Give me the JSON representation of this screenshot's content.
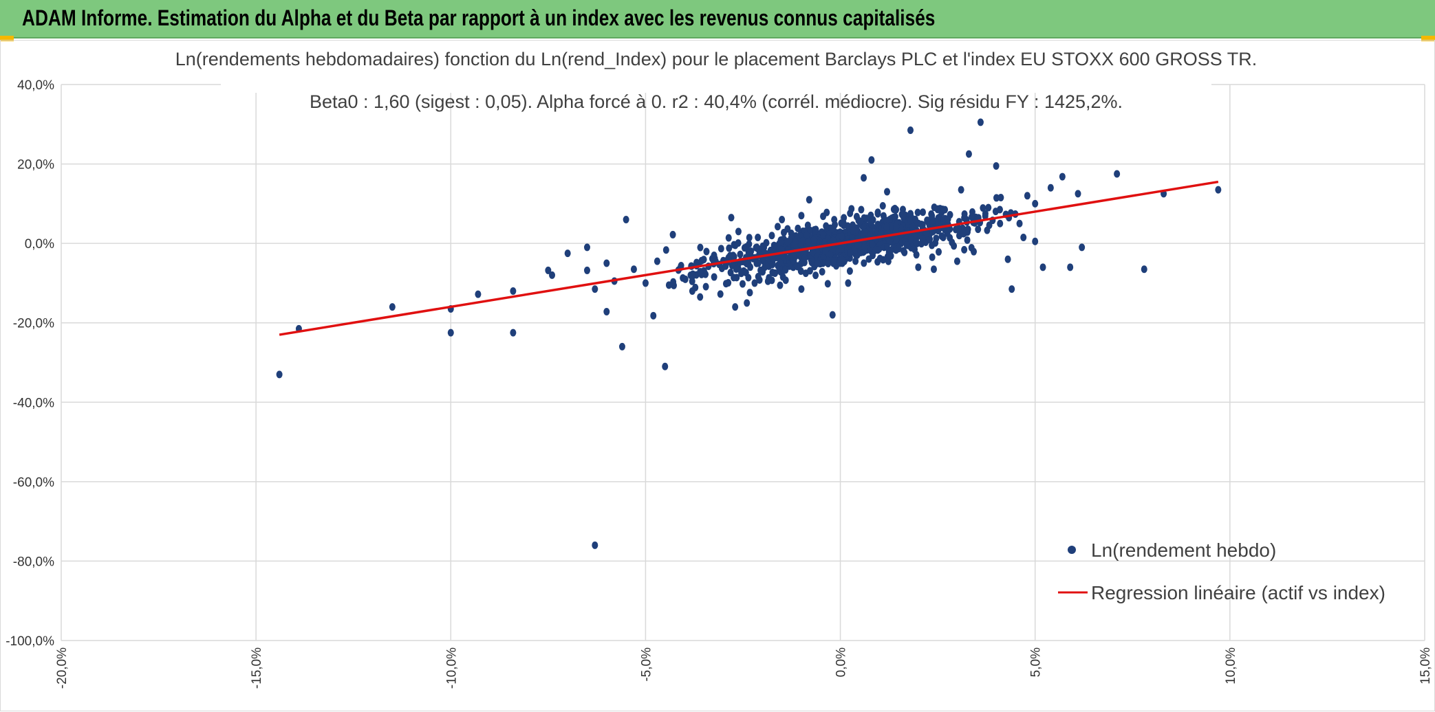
{
  "header": {
    "title": "ADAM Informe. Estimation du Alpha et du Beta par rapport à un index avec les revenus connus capitalisés"
  },
  "colors": {
    "header_bg": "#7ec87e",
    "points": "#1f3f7a",
    "regression": "#e01010",
    "grid": "#d9d9d9"
  },
  "chart_data": {
    "type": "scatter",
    "title": "Ln(rendements hebdomadaires) fonction du Ln(rend_Index) pour le placement Barclays PLC et l'index EU STOXX 600 GROSS TR.",
    "subtitle": "Beta0 : 1,60 (sigest : 0,05). Alpha forcé à 0. r2 : 40,4% (corrél. médiocre). Sig résidu FY : 1425,2%.",
    "xlim": [
      -0.2,
      0.15
    ],
    "ylim": [
      -1.0,
      0.4
    ],
    "x_ticks": [
      -0.2,
      -0.15,
      -0.1,
      -0.05,
      0.0,
      0.05,
      0.1,
      0.15
    ],
    "x_tick_labels": [
      "-20,0%",
      "-15,0%",
      "-10,0%",
      "-5,0%",
      "0,0%",
      "5,0%",
      "10,0%",
      "15,0%"
    ],
    "y_ticks": [
      0.4,
      0.2,
      0.0,
      -0.2,
      -0.4,
      -0.6,
      -0.8,
      -1.0
    ],
    "y_tick_labels": [
      "40,0%",
      "20,0%",
      "0,0%",
      "-20,0%",
      "-40,0%",
      "-60,0%",
      "-80,0%",
      "-100,0%"
    ],
    "grid": true,
    "legend_position": "bottom-right",
    "series": [
      {
        "name": "Ln(rendement hebdo)",
        "kind": "scatter",
        "outliers": [
          {
            "x": -0.144,
            "y": -0.33
          },
          {
            "x": -0.139,
            "y": -0.215
          },
          {
            "x": -0.115,
            "y": -0.16
          },
          {
            "x": -0.1,
            "y": -0.165
          },
          {
            "x": -0.1,
            "y": -0.225
          },
          {
            "x": -0.093,
            "y": -0.128
          },
          {
            "x": -0.084,
            "y": -0.12
          },
          {
            "x": -0.084,
            "y": -0.225
          },
          {
            "x": -0.075,
            "y": -0.068
          },
          {
            "x": -0.074,
            "y": -0.08
          },
          {
            "x": -0.07,
            "y": -0.025
          },
          {
            "x": -0.065,
            "y": -0.01
          },
          {
            "x": -0.065,
            "y": -0.068
          },
          {
            "x": -0.063,
            "y": -0.76
          },
          {
            "x": -0.063,
            "y": -0.115
          },
          {
            "x": -0.06,
            "y": -0.05
          },
          {
            "x": -0.06,
            "y": -0.172
          },
          {
            "x": -0.058,
            "y": -0.095
          },
          {
            "x": -0.056,
            "y": -0.26
          },
          {
            "x": -0.055,
            "y": 0.06
          },
          {
            "x": -0.053,
            "y": -0.065
          },
          {
            "x": -0.05,
            "y": -0.1
          },
          {
            "x": -0.048,
            "y": -0.182
          },
          {
            "x": -0.047,
            "y": -0.045
          },
          {
            "x": -0.045,
            "y": -0.31
          },
          {
            "x": -0.044,
            "y": -0.105
          },
          {
            "x": -0.043,
            "y": 0.022
          },
          {
            "x": -0.041,
            "y": -0.06
          },
          {
            "x": -0.038,
            "y": -0.12
          },
          {
            "x": -0.036,
            "y": -0.135
          },
          {
            "x": -0.028,
            "y": 0.065
          },
          {
            "x": -0.027,
            "y": -0.16
          },
          {
            "x": -0.024,
            "y": -0.15
          },
          {
            "x": -0.022,
            "y": -0.1
          },
          {
            "x": -0.015,
            "y": 0.06
          },
          {
            "x": -0.01,
            "y": -0.115
          },
          {
            "x": -0.01,
            "y": 0.07
          },
          {
            "x": -0.008,
            "y": 0.11
          },
          {
            "x": -0.002,
            "y": -0.18
          },
          {
            "x": 0.002,
            "y": -0.1
          },
          {
            "x": 0.006,
            "y": 0.165
          },
          {
            "x": 0.008,
            "y": 0.21
          },
          {
            "x": 0.012,
            "y": 0.13
          },
          {
            "x": 0.018,
            "y": 0.285
          },
          {
            "x": 0.02,
            "y": -0.06
          },
          {
            "x": 0.024,
            "y": -0.065
          },
          {
            "x": 0.03,
            "y": -0.045
          },
          {
            "x": 0.031,
            "y": 0.135
          },
          {
            "x": 0.033,
            "y": 0.225
          },
          {
            "x": 0.036,
            "y": 0.305
          },
          {
            "x": 0.038,
            "y": 0.09
          },
          {
            "x": 0.04,
            "y": 0.195
          },
          {
            "x": 0.041,
            "y": 0.05
          },
          {
            "x": 0.043,
            "y": -0.04
          },
          {
            "x": 0.044,
            "y": -0.115
          },
          {
            "x": 0.046,
            "y": 0.05
          },
          {
            "x": 0.047,
            "y": 0.015
          },
          {
            "x": 0.048,
            "y": 0.12
          },
          {
            "x": 0.05,
            "y": 0.1
          },
          {
            "x": 0.05,
            "y": 0.005
          },
          {
            "x": 0.052,
            "y": -0.06
          },
          {
            "x": 0.054,
            "y": 0.14
          },
          {
            "x": 0.057,
            "y": 0.168
          },
          {
            "x": 0.059,
            "y": -0.06
          },
          {
            "x": 0.061,
            "y": 0.125
          },
          {
            "x": 0.062,
            "y": -0.01
          },
          {
            "x": 0.071,
            "y": 0.175
          },
          {
            "x": 0.078,
            "y": -0.065
          },
          {
            "x": 0.083,
            "y": 0.125
          },
          {
            "x": 0.097,
            "y": 0.135
          }
        ],
        "cloud": {
          "count": 950,
          "x_mean": 0.0,
          "x_sd": 0.017,
          "slope": 1.6,
          "resid_sd": 0.035,
          "x_min": -0.045,
          "x_max": 0.045
        }
      },
      {
        "name": "Regression linéaire (actif vs index)",
        "kind": "line",
        "x": [
          -0.144,
          0.097
        ],
        "y": [
          -0.23,
          0.155
        ]
      }
    ]
  }
}
